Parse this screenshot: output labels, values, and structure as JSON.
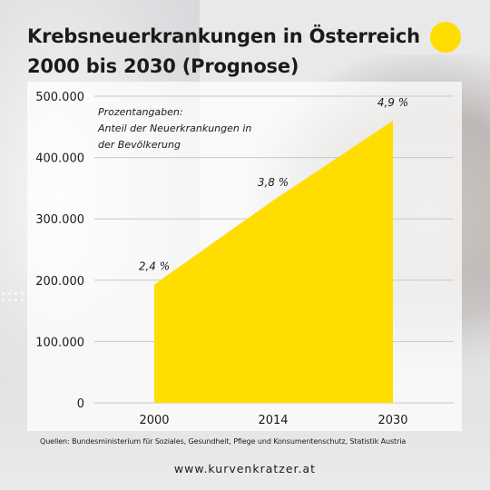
{
  "title_lines": [
    "Krebsneuerkrankungen in Österreich",
    "2000 bis 2030 (Prognose)"
  ],
  "accent_color": "#ffdd00",
  "chart_data": {
    "type": "area",
    "x": [
      "2000",
      "2014",
      "2030"
    ],
    "x_numeric": [
      2000,
      2014,
      2030
    ],
    "y": [
      193000,
      330000,
      460000
    ],
    "data_labels": [
      "2,4 %",
      "3,8 %",
      "4,9 %"
    ],
    "y_ticks": [
      0,
      100000,
      200000,
      300000,
      400000,
      500000
    ],
    "y_tick_labels": [
      "0",
      "100.000",
      "200.000",
      "300.000",
      "400.000",
      "500.000"
    ],
    "ylim": [
      0,
      500000
    ],
    "grid": true,
    "fill_color": "#ffdd00",
    "annotation": [
      "Prozentangaben:",
      "Anteil der Neuerkrankungen in",
      "der Bevölkerung"
    ]
  },
  "source": "Quellen: Bundesministerium für Soziales, Gesundheit, Pflege und Konsumentenschutz, Statistik Austria",
  "url": "www.kurvenkratzer.at"
}
